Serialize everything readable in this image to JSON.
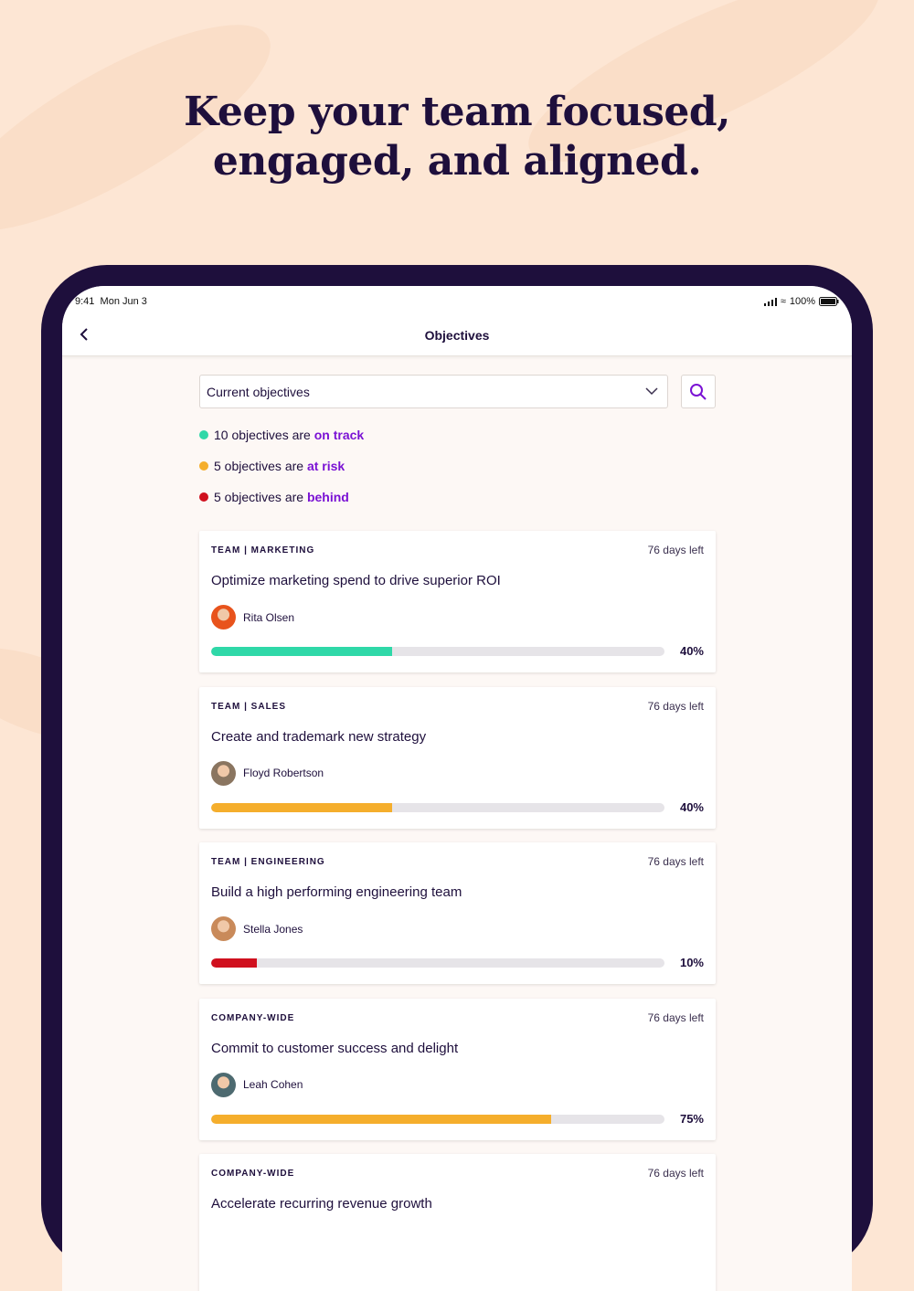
{
  "headline": [
    "Keep your team focused,",
    "engaged, and aligned."
  ],
  "status_bar": {
    "time": "9:41",
    "date": "Mon Jun 3",
    "battery": "100%"
  },
  "nav": {
    "title": "Objectives",
    "back_icon": "chevron-left-icon"
  },
  "filter": {
    "selected": "Current objectives",
    "search_icon": "search-icon"
  },
  "summary": [
    {
      "count_text": "10 objectives are ",
      "status": "on track",
      "color": "#2fd8a8"
    },
    {
      "count_text": "5 objectives are ",
      "status": "at risk",
      "color": "#f5ae2c"
    },
    {
      "count_text": "5 objectives are ",
      "status": "behind",
      "color": "#d0101e"
    }
  ],
  "objectives": [
    {
      "category": "TEAM | MARKETING",
      "days_left": "76 days left",
      "title": "Optimize marketing spend to drive superior ROI",
      "owner": "Rita Olsen",
      "progress": 40,
      "progress_label": "40%",
      "color": "#2fd8a8",
      "avatar_color": "#e8531c"
    },
    {
      "category": "TEAM | SALES",
      "days_left": "76 days left",
      "title": "Create and trademark new strategy",
      "owner": "Floyd Robertson",
      "progress": 40,
      "progress_label": "40%",
      "color": "#f5ae2c",
      "avatar_color": "#8a7560"
    },
    {
      "category": "TEAM | ENGINEERING",
      "days_left": "76 days left",
      "title": "Build a high performing engineering team",
      "owner": "Stella Jones",
      "progress": 10,
      "progress_label": "10%",
      "color": "#d0101e",
      "avatar_color": "#c98a5a"
    },
    {
      "category": "COMPANY-WIDE",
      "days_left": "76 days left",
      "title": "Commit to customer success and delight",
      "owner": "Leah Cohen",
      "progress": 75,
      "progress_label": "75%",
      "color": "#f5ae2c",
      "avatar_color": "#4d6a70"
    },
    {
      "category": "COMPANY-WIDE",
      "days_left": "76 days left",
      "title": "Accelerate recurring revenue growth"
    }
  ]
}
